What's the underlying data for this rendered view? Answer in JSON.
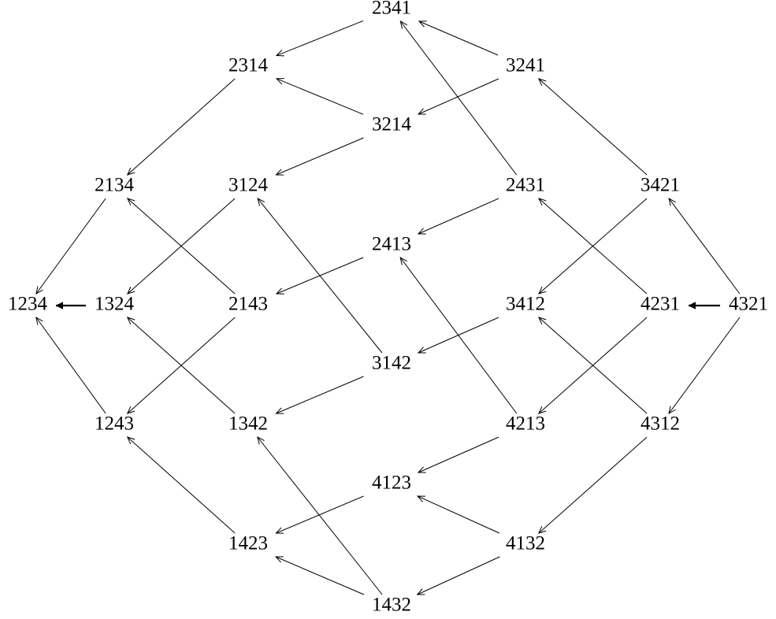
{
  "nodes": [
    {
      "label": "2341"
    },
    {
      "label": "2314"
    },
    {
      "label": "3241"
    },
    {
      "label": "3214"
    },
    {
      "label": "2134"
    },
    {
      "label": "3124"
    },
    {
      "label": "2431"
    },
    {
      "label": "3421"
    },
    {
      "label": "2413"
    },
    {
      "label": "1234"
    },
    {
      "label": "1324"
    },
    {
      "label": "2143"
    },
    {
      "label": "3412"
    },
    {
      "label": "4231"
    },
    {
      "label": "4321"
    },
    {
      "label": "3142"
    },
    {
      "label": "1243"
    },
    {
      "label": "1342"
    },
    {
      "label": "4213"
    },
    {
      "label": "4312"
    },
    {
      "label": "4123"
    },
    {
      "label": "1423"
    },
    {
      "label": "4132"
    },
    {
      "label": "1432"
    }
  ]
}
